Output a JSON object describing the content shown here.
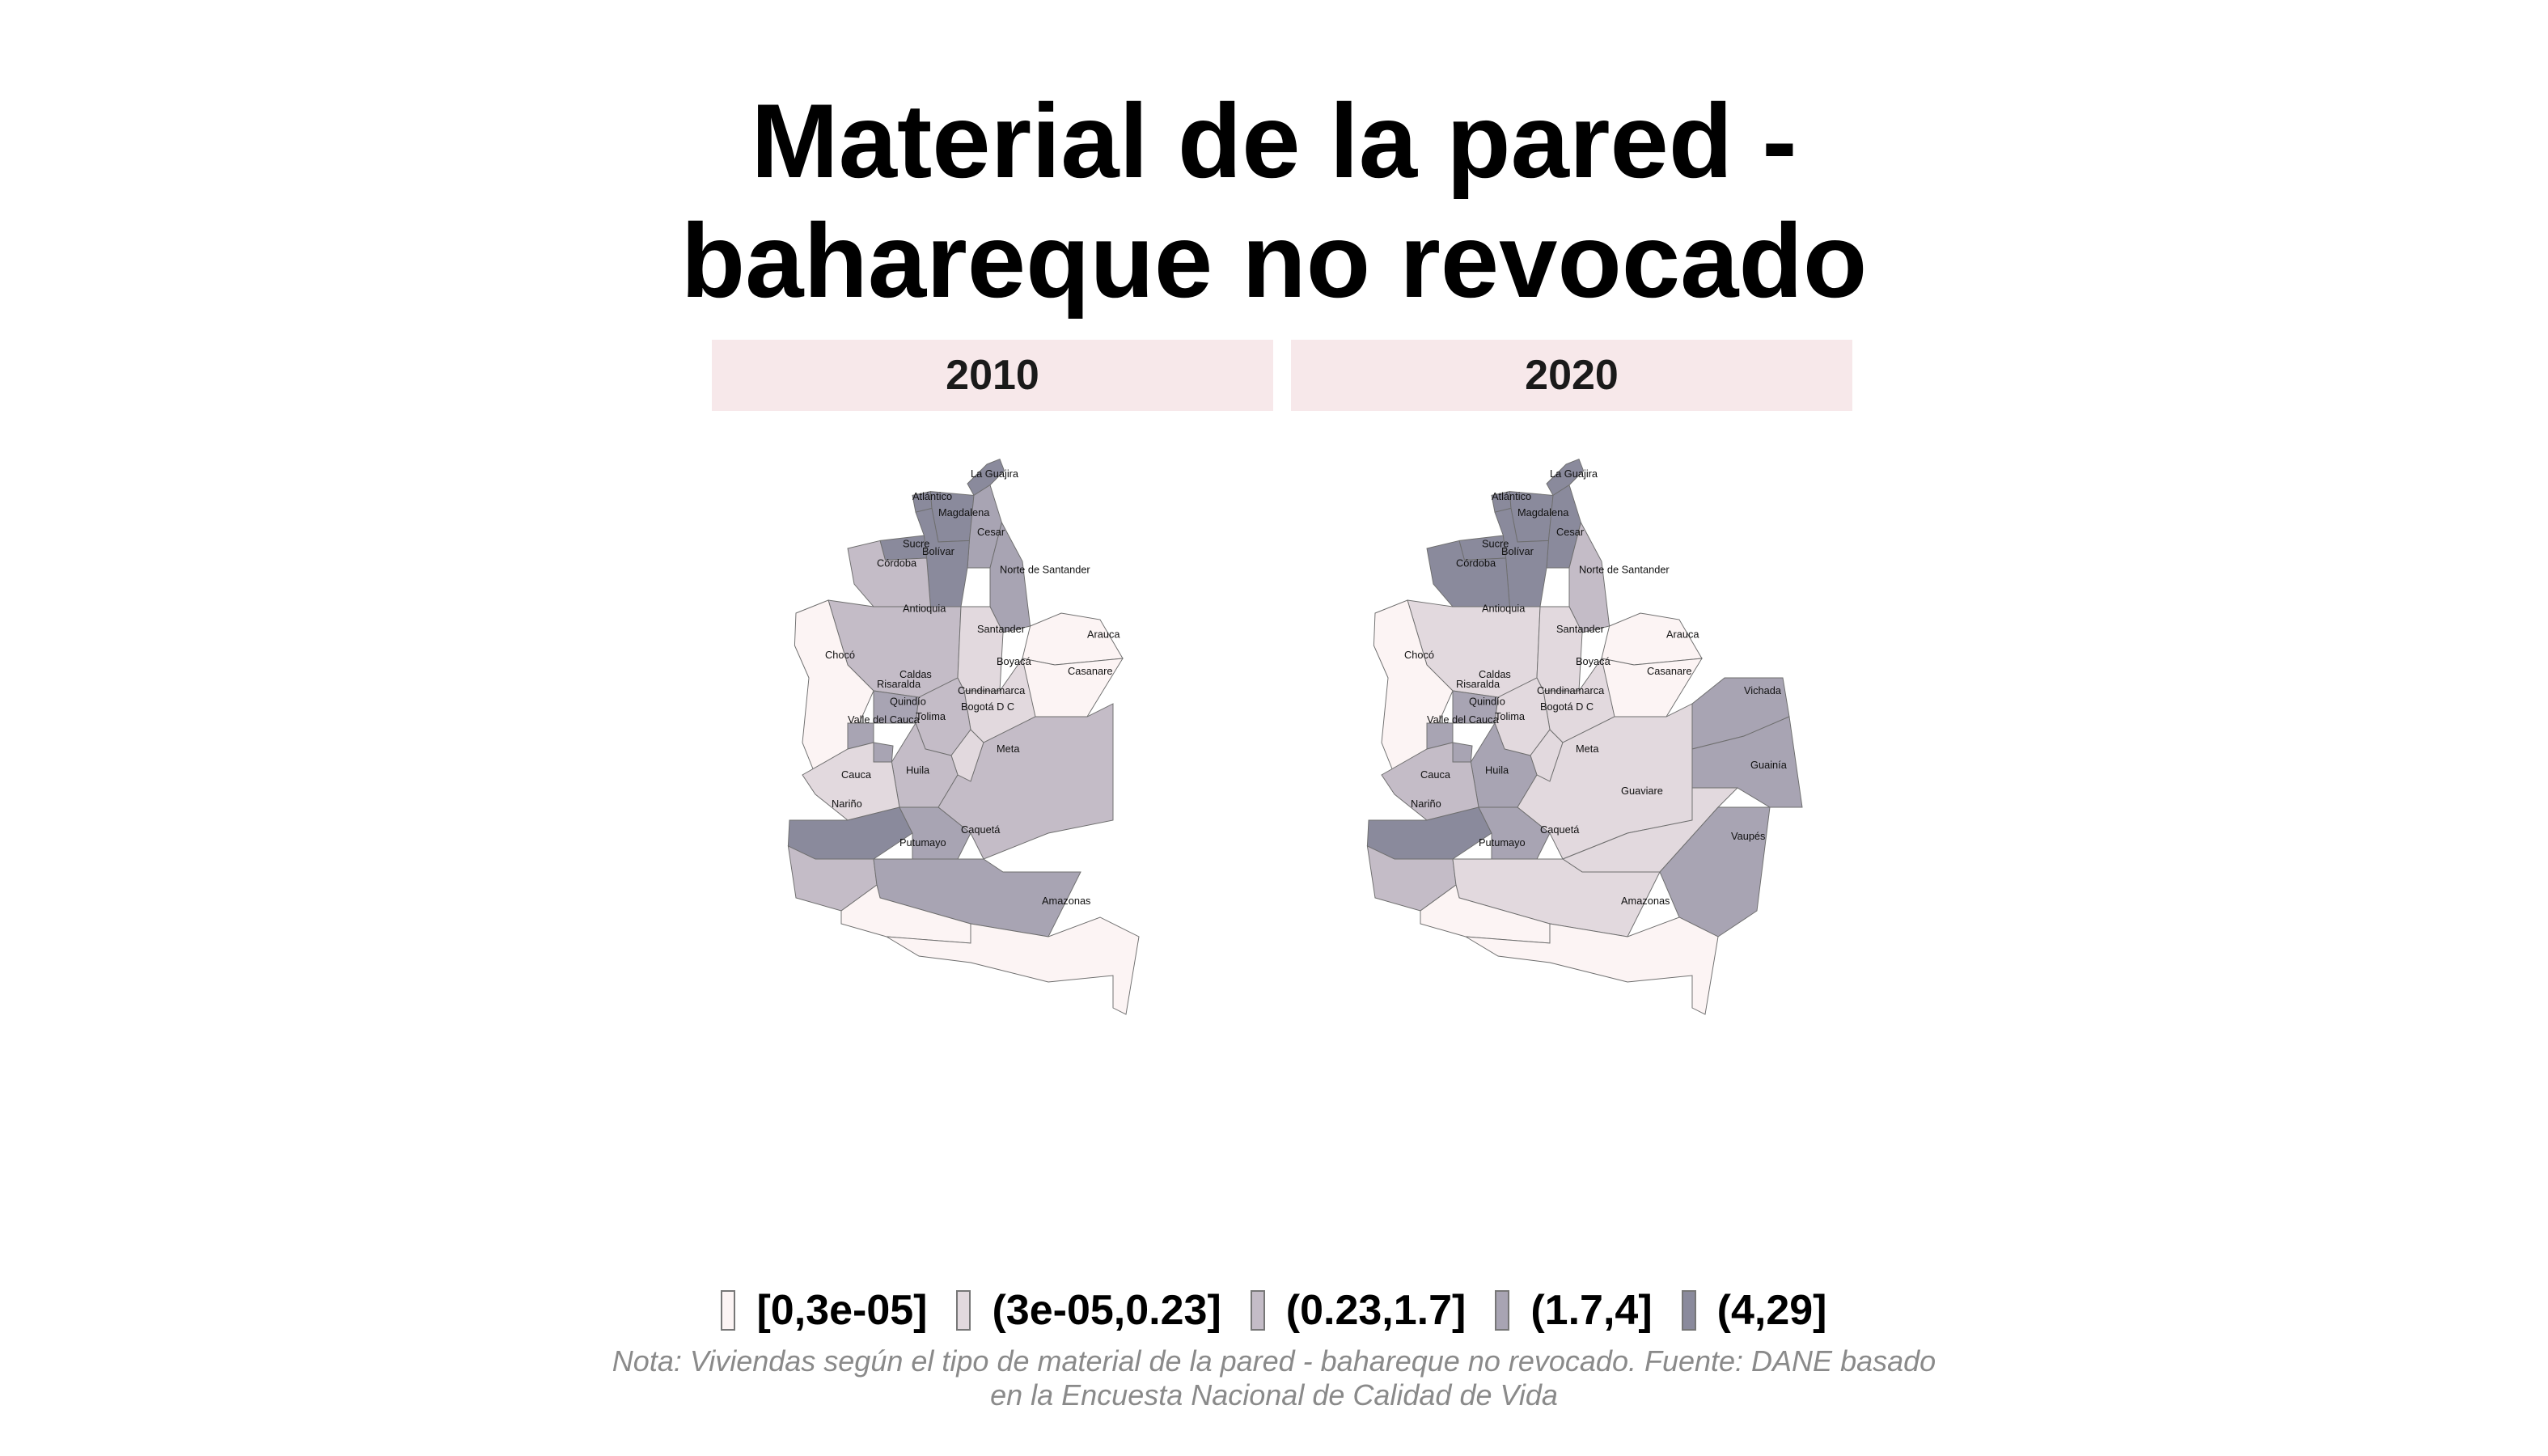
{
  "title_line1": "Material de la pared -",
  "title_line2": "bahareque no revocado",
  "facets": [
    "2010",
    "2020"
  ],
  "legend": [
    {
      "label": "[0,3e-05]",
      "color": "#fcf4f4"
    },
    {
      "label": "(3e-05,0.23]",
      "color": "#e2d9de"
    },
    {
      "label": "(0.23,1.7]",
      "color": "#c4bcc7"
    },
    {
      "label": "(1.7,4]",
      "color": "#a8a4b3"
    },
    {
      "label": "(4,29]",
      "color": "#8a8a9c"
    }
  ],
  "note_line1": "Nota: Viviendas según el tipo de material de la pared - bahareque no revocado. Fuente: DANE basado",
  "note_line2": "en la Encuesta Nacional de Calidad de Vida",
  "regions": {
    "La Guajira": [
      4,
      4
    ],
    "Atlántico": [
      4,
      4
    ],
    "Magdalena": [
      4,
      4
    ],
    "Cesar": [
      3,
      4
    ],
    "Sucre": [
      4,
      4
    ],
    "Bolívar": [
      4,
      4
    ],
    "Córdoba": [
      2,
      4
    ],
    "Norte de Santander": [
      3,
      2
    ],
    "Antioquia": [
      2,
      1
    ],
    "Santander": [
      1,
      1
    ],
    "Arauca": [
      0,
      0
    ],
    "Chocó": [
      0,
      0
    ],
    "Boyacá": [
      1,
      1
    ],
    "Casanare": [
      0,
      0
    ],
    "Caldas": [
      3,
      3
    ],
    "Risaralda": [
      3,
      3
    ],
    "Cundinamarca": [
      2,
      1
    ],
    "Bogotá D C": [
      1,
      1
    ],
    "Quindío": [
      3,
      3
    ],
    "Tolima": [
      2,
      3
    ],
    "Valle del Cauca": [
      1,
      2
    ],
    "Meta": [
      2,
      1
    ],
    "Vichada": [
      null,
      3
    ],
    "Cauca": [
      4,
      4
    ],
    "Huila": [
      3,
      3
    ],
    "Guainía": [
      null,
      3
    ],
    "Guaviare": [
      null,
      1
    ],
    "Nariño": [
      2,
      2
    ],
    "Caquetá": [
      3,
      1
    ],
    "Vaupés": [
      null,
      3
    ],
    "Putumayo": [
      0,
      0
    ],
    "Amazonas": [
      0,
      0
    ]
  }
}
